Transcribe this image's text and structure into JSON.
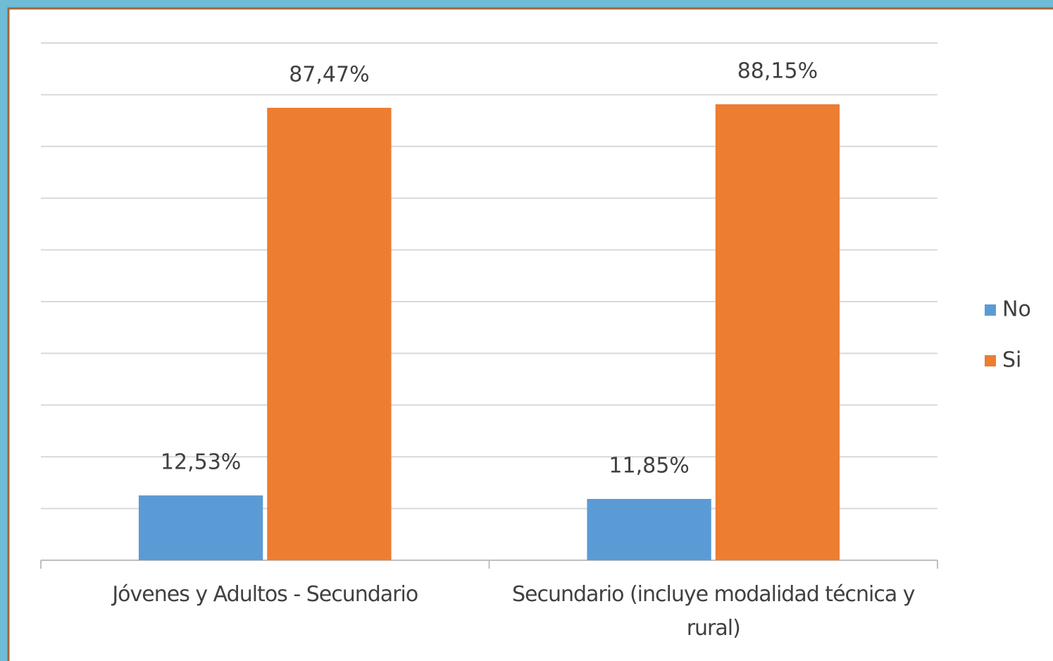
{
  "chart_data": {
    "type": "bar",
    "categories": [
      "Jóvenes y Adultos - Secundario",
      "Secundario (incluye modalidad técnica y rural)"
    ],
    "series": [
      {
        "name": "No",
        "color": "#5b9bd5",
        "values": [
          12.53,
          11.85
        ],
        "value_labels": [
          "12,53%",
          "11,85%"
        ]
      },
      {
        "name": "Si",
        "color": "#ed7d31",
        "values": [
          87.47,
          88.15
        ],
        "value_labels": [
          "87,47%",
          "88,15%"
        ]
      }
    ],
    "ylim": [
      0,
      100
    ],
    "yticks": [
      0,
      10,
      20,
      30,
      40,
      50,
      60,
      70,
      80,
      90,
      100
    ],
    "grid": true,
    "legend": "right"
  }
}
